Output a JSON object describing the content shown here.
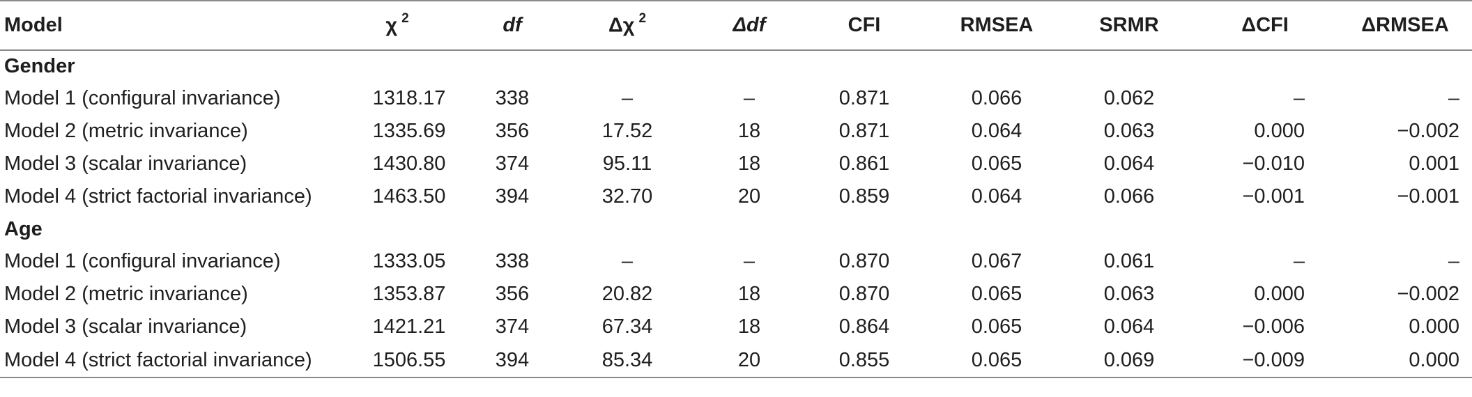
{
  "headers": {
    "model": "Model",
    "chi2": "χ",
    "chi2_sup": "2",
    "df": "df",
    "dchi2": "Δχ",
    "dchi2_sup": "2",
    "ddf": "Δdf",
    "cfi": "CFI",
    "rmsea": "RMSEA",
    "srmr": "SRMR",
    "dcfi": "ΔCFI",
    "drmsea": "ΔRMSEA"
  },
  "groups": [
    {
      "label": "Gender",
      "rows": [
        {
          "model": "Model 1 (configural invariance)",
          "chi2": "1318.17",
          "df": "338",
          "dchi2": "–",
          "ddf": "–",
          "cfi": "0.871",
          "rmsea": "0.066",
          "srmr": "0.062",
          "dcfi": "–",
          "drmsea": "–"
        },
        {
          "model": "Model 2 (metric invariance)",
          "chi2": "1335.69",
          "df": "356",
          "dchi2": "17.52",
          "ddf": "18",
          "cfi": "0.871",
          "rmsea": "0.064",
          "srmr": "0.063",
          "dcfi": "0.000",
          "drmsea": "−0.002"
        },
        {
          "model": "Model 3 (scalar invariance)",
          "chi2": "1430.80",
          "df": "374",
          "dchi2": "95.11",
          "ddf": "18",
          "cfi": "0.861",
          "rmsea": "0.065",
          "srmr": "0.064",
          "dcfi": "−0.010",
          "drmsea": "0.001"
        },
        {
          "model": "Model 4 (strict factorial invariance)",
          "chi2": "1463.50",
          "df": "394",
          "dchi2": "32.70",
          "ddf": "20",
          "cfi": "0.859",
          "rmsea": "0.064",
          "srmr": "0.066",
          "dcfi": "−0.001",
          "drmsea": "−0.001"
        }
      ]
    },
    {
      "label": "Age",
      "rows": [
        {
          "model": "Model 1 (configural invariance)",
          "chi2": "1333.05",
          "df": "338",
          "dchi2": "–",
          "ddf": "–",
          "cfi": "0.870",
          "rmsea": "0.067",
          "srmr": "0.061",
          "dcfi": "–",
          "drmsea": "–"
        },
        {
          "model": "Model 2 (metric invariance)",
          "chi2": "1353.87",
          "df": "356",
          "dchi2": "20.82",
          "ddf": "18",
          "cfi": "0.870",
          "rmsea": "0.065",
          "srmr": "0.063",
          "dcfi": "0.000",
          "drmsea": "−0.002"
        },
        {
          "model": "Model 3 (scalar invariance)",
          "chi2": "1421.21",
          "df": "374",
          "dchi2": "67.34",
          "ddf": "18",
          "cfi": "0.864",
          "rmsea": "0.065",
          "srmr": "0.064",
          "dcfi": "−0.006",
          "drmsea": "0.000"
        },
        {
          "model": "Model 4 (strict factorial invariance)",
          "chi2": "1506.55",
          "df": "394",
          "dchi2": "85.34",
          "ddf": "20",
          "cfi": "0.855",
          "rmsea": "0.065",
          "srmr": "0.069",
          "dcfi": "−0.009",
          "drmsea": "0.000"
        }
      ]
    }
  ]
}
